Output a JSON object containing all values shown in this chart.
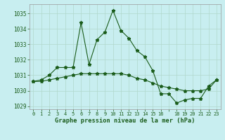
{
  "title": "Graphe pression niveau de la mer (hPa)",
  "background_color": "#c8eef0",
  "grid_color": "#b0d8cc",
  "line_color": "#1a5c1a",
  "x_labels": [
    "0",
    "1",
    "2",
    "3",
    "4",
    "5",
    "6",
    "7",
    "8",
    "9",
    "10",
    "11",
    "12",
    "13",
    "14",
    "15",
    "16",
    "",
    "18",
    "19",
    "20",
    "21",
    "22",
    "23"
  ],
  "x_values": [
    0,
    1,
    2,
    3,
    4,
    5,
    6,
    7,
    8,
    9,
    10,
    11,
    12,
    13,
    14,
    15,
    16,
    17,
    18,
    19,
    20,
    21,
    22,
    23
  ],
  "series1": [
    1030.6,
    1030.7,
    1031.0,
    1031.5,
    1031.5,
    1031.5,
    1034.4,
    1031.7,
    1033.3,
    1033.8,
    1035.2,
    1033.9,
    1033.4,
    1032.6,
    1032.2,
    1031.3,
    1029.8,
    1029.8,
    1029.2,
    1029.4,
    1029.5,
    1029.5,
    1030.3,
    1030.7
  ],
  "series2": [
    1030.6,
    1030.6,
    1030.7,
    1030.8,
    1030.9,
    1031.0,
    1031.1,
    1031.1,
    1031.1,
    1031.1,
    1031.1,
    1031.1,
    1031.0,
    1030.8,
    1030.7,
    1030.5,
    1030.3,
    1030.2,
    1030.1,
    1030.0,
    1030.0,
    1030.0,
    1030.1,
    1030.7
  ],
  "ylim": [
    1028.8,
    1035.6
  ],
  "yticks": [
    1029,
    1030,
    1031,
    1032,
    1033,
    1034,
    1035
  ],
  "marker": "*",
  "marker_size": 3.5,
  "linewidth": 0.8
}
